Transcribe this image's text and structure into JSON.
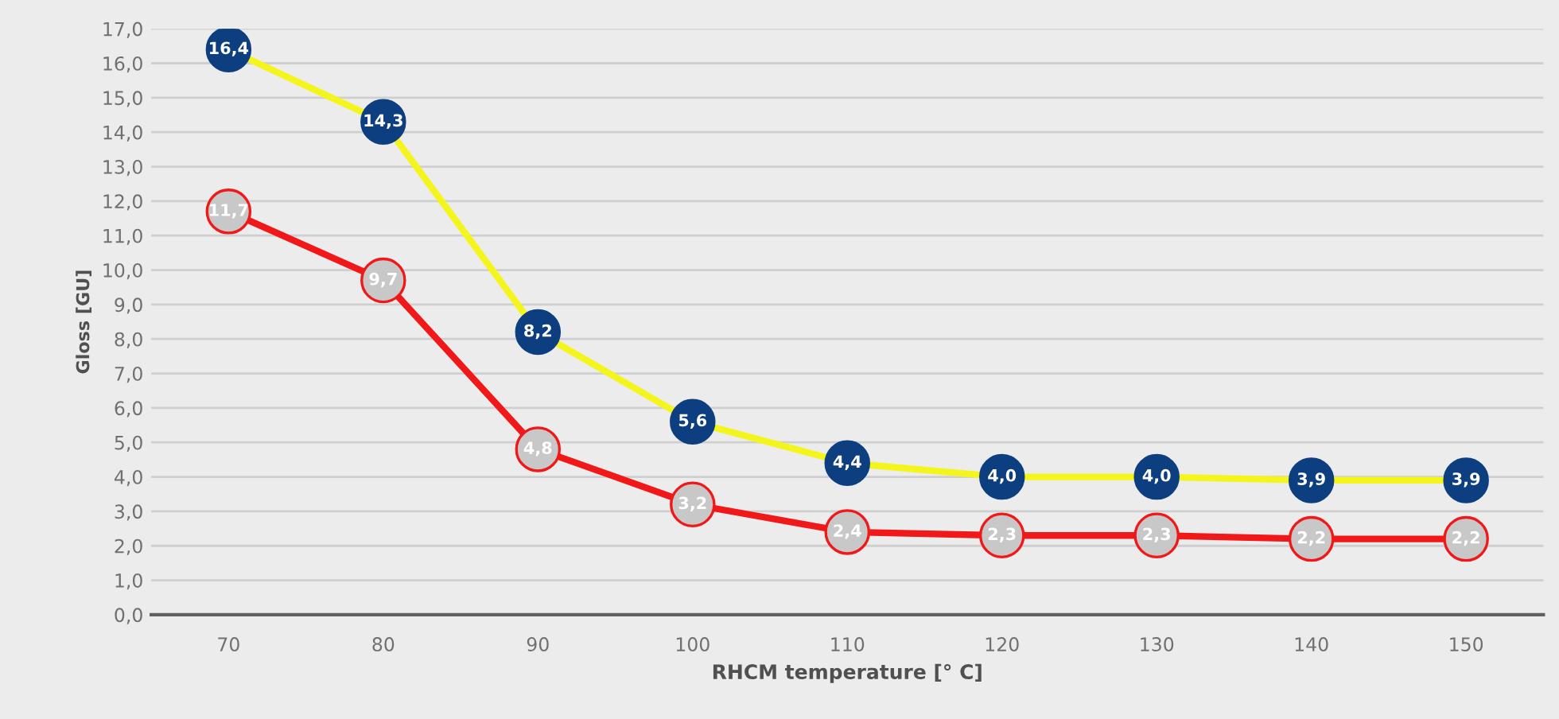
{
  "chart_data": {
    "type": "line",
    "xlabel": "RHCM temperature [° C]",
    "ylabel": "Gloss [GU]",
    "categories": [
      "70",
      "80",
      "90",
      "100",
      "110",
      "120",
      "130",
      "140",
      "150"
    ],
    "series": [
      {
        "color": "#f5f51e",
        "colors": [
          "#0d3f80",
          "#0d3f80",
          "#0d3f80",
          "#0d3f80",
          "#0d3f80",
          "#0d3f80",
          "#0d3f80",
          "#0d3f80",
          "#0d3f80"
        ],
        "values": [
          16.4,
          14.3,
          8.2,
          5.6,
          4.4,
          4.0,
          4.0,
          3.9,
          3.9
        ],
        "value_labels": [
          "16,4",
          "14,3",
          "8,2",
          "5,6",
          "4,4",
          "4,0",
          "4,0",
          "3,9",
          "3,9"
        ]
      },
      {
        "color": "#f01818",
        "colors": [
          "#c8c8c8",
          "#c8c8c8",
          "#c8c8c8",
          "#c8c8c8",
          "#c8c8c8",
          "#c8c8c8",
          "#c8c8c8",
          "#c8c8c8",
          "#c8c8c8"
        ],
        "values": [
          11.7,
          9.7,
          4.8,
          3.2,
          2.4,
          2.3,
          2.3,
          2.2,
          2.2
        ],
        "value_labels": [
          "11,7",
          "9,7",
          "4,8",
          "3,2",
          "2,4",
          "2,3",
          "2,3",
          "2,2",
          "2,2"
        ]
      }
    ],
    "ylim": [
      0,
      17
    ],
    "yticks": [
      {
        "value": 0,
        "label": "0,0"
      },
      {
        "value": 1,
        "label": "1,0"
      },
      {
        "value": 2,
        "label": "2,0"
      },
      {
        "value": 3,
        "label": "3,0"
      },
      {
        "value": 4,
        "label": "4,0"
      },
      {
        "value": 5,
        "label": "5,0"
      },
      {
        "value": 6,
        "label": "6,0"
      },
      {
        "value": 7,
        "label": "7,0"
      },
      {
        "value": 8,
        "label": "8,0"
      },
      {
        "value": 9,
        "label": "9,0"
      },
      {
        "value": 10,
        "label": "10,0"
      },
      {
        "value": 11,
        "label": "11,0"
      },
      {
        "value": 12,
        "label": "12,0"
      },
      {
        "value": 13,
        "label": "13,0"
      },
      {
        "value": 14,
        "label": "14,0"
      },
      {
        "value": 15,
        "label": "15,0"
      },
      {
        "value": 16,
        "label": "16,0"
      },
      {
        "value": 17,
        "label": "17,0"
      }
    ],
    "grid": "y",
    "marker": "circle",
    "line_style": "solid"
  }
}
